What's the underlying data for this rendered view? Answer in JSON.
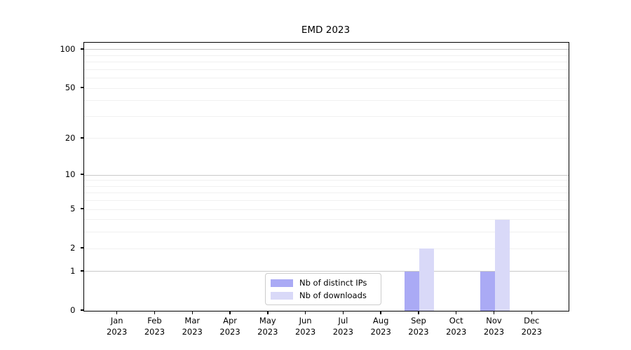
{
  "chart_data": {
    "type": "bar",
    "title": "EMD 2023",
    "categories": [
      "Jan",
      "Feb",
      "Mar",
      "Apr",
      "May",
      "Jun",
      "Jul",
      "Aug",
      "Sep",
      "Oct",
      "Nov",
      "Dec"
    ],
    "category_year": "2023",
    "series": [
      {
        "name": "Nb of distinct IPs",
        "color": "#aaaaf5",
        "values": [
          0,
          0,
          0,
          0,
          0,
          0,
          0,
          0,
          1,
          0,
          1,
          0
        ]
      },
      {
        "name": "Nb of downloads",
        "color": "#d9d9f8",
        "values": [
          0,
          0,
          0,
          0,
          0,
          0,
          0,
          0,
          2,
          0,
          4,
          0
        ]
      }
    ],
    "xlabel": "",
    "ylabel": "",
    "y_axis": {
      "scale": "log1p",
      "ylim": [
        0,
        113
      ],
      "tick_labels": [
        "0",
        "1",
        "2",
        "5",
        "10",
        "20",
        "50",
        "100"
      ],
      "tick_values": [
        0,
        1,
        2,
        5,
        10,
        20,
        50,
        100
      ],
      "major_gridlines": [
        1,
        10,
        100
      ],
      "minor_gridlines": [
        2,
        3,
        4,
        5,
        6,
        7,
        8,
        9,
        20,
        30,
        40,
        50,
        60,
        70,
        80,
        90
      ]
    },
    "grid": true,
    "legend": {
      "position": "lower center"
    }
  },
  "colors": {
    "background": "#ffffff",
    "axis": "#000000",
    "text": "#000000",
    "major_grid": "#c9c9c9",
    "minor_grid": "#f0f0f0",
    "legend_border": "#cccccc",
    "legend_background": "#ffffff"
  }
}
